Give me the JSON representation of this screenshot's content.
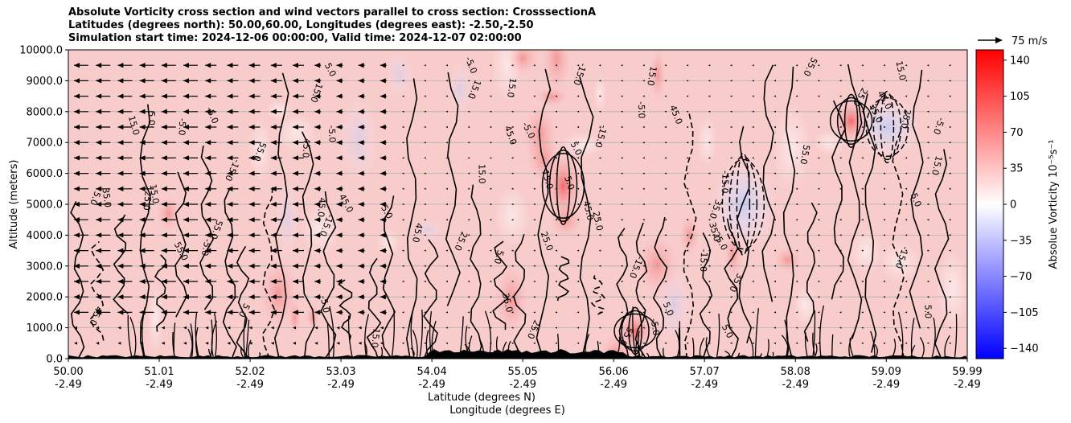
{
  "title": {
    "line1": "Absolute Vorticity cross section and wind vectors parallel to cross section: CrosssectionA",
    "line2": "Latitudes (degrees north): 50.00,60.00, Longitudes (degrees east): -2.50,-2.50",
    "line3": "Simulation start time: 2024-12-06 00:00:00, Valid time: 2024-12-07 02:00:00"
  },
  "quiver_key": {
    "label": "75 m/s"
  },
  "chart_data": {
    "type": "heatmap",
    "subtype": "contourf with contour lines and wind vectors",
    "ylabel": "Altitude (meters)",
    "xlabel_lines": [
      "Latitude (degrees N)",
      "Longitude (degrees E)"
    ],
    "ylim": [
      0,
      10000
    ],
    "xlim": [
      50.0,
      59.99
    ],
    "y_ticks": [
      "0.0",
      "1000.0",
      "2000.0",
      "3000.0",
      "4000.0",
      "5000.0",
      "6000.0",
      "7000.0",
      "8000.0",
      "9000.0",
      "10000.0"
    ],
    "y_tick_values": [
      0,
      1000,
      2000,
      3000,
      4000,
      5000,
      6000,
      7000,
      8000,
      9000,
      10000
    ],
    "x_tick_values": [
      50.0,
      51.01,
      52.02,
      53.03,
      54.04,
      55.05,
      56.06,
      57.07,
      58.08,
      59.09,
      59.99
    ],
    "x_ticks_lat": [
      "50.00",
      "51.01",
      "52.02",
      "53.03",
      "54.04",
      "55.05",
      "56.06",
      "57.07",
      "58.08",
      "59.09",
      "59.99"
    ],
    "x_ticks_lon": [
      "-2.49",
      "-2.49",
      "-2.49",
      "-2.49",
      "-2.49",
      "-2.49",
      "-2.49",
      "-2.49",
      "-2.49",
      "-2.49",
      "-2.49"
    ],
    "grid": "horizontal",
    "colorbar": {
      "label": "Absolue Vorticity 10⁻⁵s⁻¹",
      "ticks": [
        "140",
        "105",
        "70",
        "35",
        "0",
        "−35",
        "−70",
        "−105",
        "−140"
      ],
      "tick_values": [
        140,
        105,
        70,
        35,
        0,
        -35,
        -70,
        -105,
        -140
      ],
      "range": [
        -150,
        150
      ],
      "colormap": "bwr",
      "colors": {
        "low": "#0000ff",
        "mid": "#ffffff",
        "high": "#ff0000"
      }
    },
    "contour_labels": [
      "25.0",
      "15.0",
      "5.0",
      "35.0",
      "45.0",
      "55.0",
      "-5.0",
      "-15.0"
    ],
    "background_vorticity": 25,
    "features": [
      {
        "lat": 55.5,
        "alt_bottom": 4500,
        "alt_top": 6700,
        "vorticity": 70
      },
      {
        "lat": 56.3,
        "alt_bottom": 300,
        "alt_top": 1500,
        "vorticity": 55
      },
      {
        "lat": 58.7,
        "alt_bottom": 7000,
        "alt_top": 8400,
        "vorticity": 55
      },
      {
        "lat": 57.5,
        "alt_bottom": 3500,
        "alt_top": 6500,
        "vorticity": -20
      },
      {
        "lat": 59.1,
        "alt_bottom": 6500,
        "alt_top": 8500,
        "vorticity": -15
      }
    ]
  }
}
